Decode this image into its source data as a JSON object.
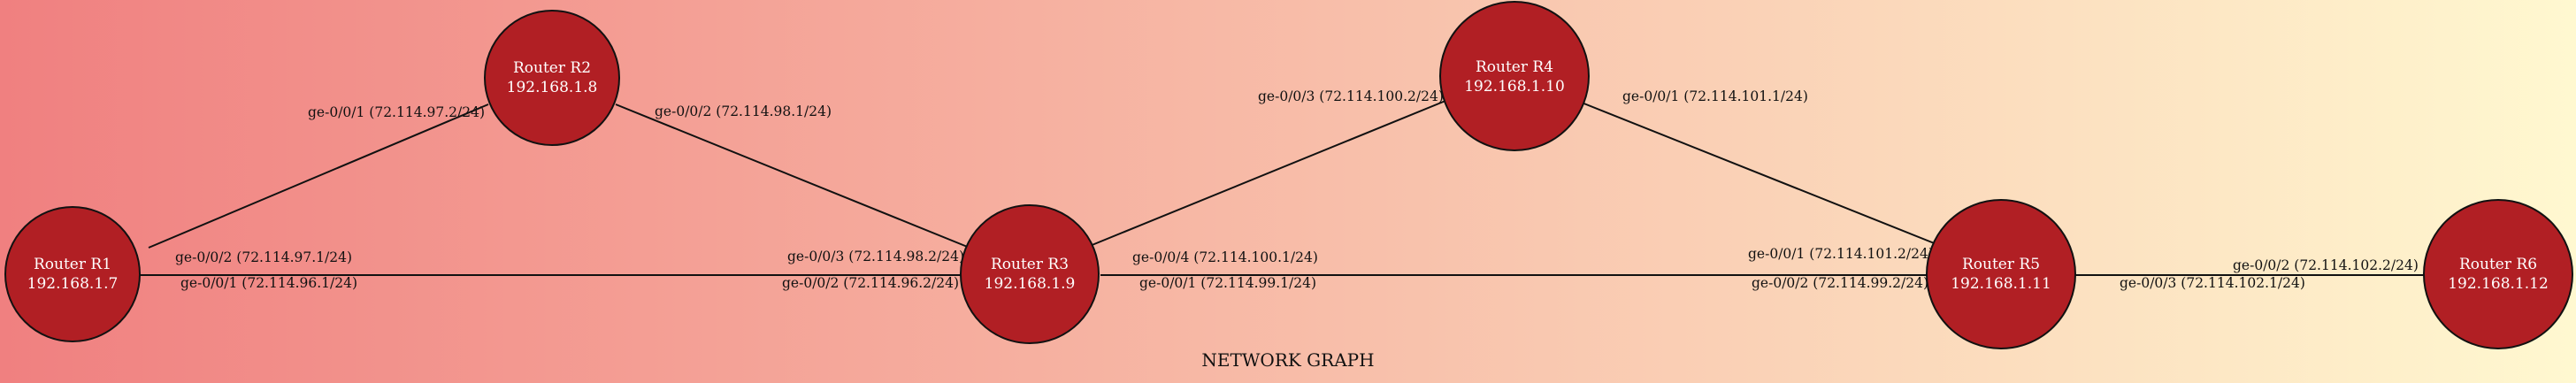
{
  "colors": {
    "bg_left": "#f08080",
    "bg_right": "#fff8d0",
    "node": "#b11f24",
    "line": "#111111"
  },
  "title": "NETWORK GRAPH",
  "nodes": [
    {
      "id": "r1",
      "name": "Router R1",
      "ip": "192.168.1.7"
    },
    {
      "id": "r2",
      "name": "Router R2",
      "ip": "192.168.1.8"
    },
    {
      "id": "r3",
      "name": "Router R3",
      "ip": "192.168.1.9"
    },
    {
      "id": "r4",
      "name": "Router R4",
      "ip": "192.168.1.10"
    },
    {
      "id": "r5",
      "name": "Router R5",
      "ip": "192.168.1.11"
    },
    {
      "id": "r6",
      "name": "Router R6",
      "ip": "192.168.1.12"
    }
  ],
  "edges": [
    {
      "id": "r1-r2",
      "from": "r1",
      "to": "r2",
      "from_label": "ge-0/0/2 (72.114.97.1/24)",
      "to_label": "ge-0/0/1 (72.114.97.2/24)"
    },
    {
      "id": "r2-r3",
      "from": "r2",
      "to": "r3",
      "from_label": "ge-0/0/2 (72.114.98.1/24)",
      "to_label": "ge-0/0/3 (72.114.98.2/24)"
    },
    {
      "id": "r1-r3",
      "from": "r1",
      "to": "r3",
      "from_label": "ge-0/0/1 (72.114.96.1/24)",
      "to_label": "ge-0/0/2 (72.114.96.2/24)"
    },
    {
      "id": "r3-r4",
      "from": "r3",
      "to": "r4",
      "from_label": "ge-0/0/4 (72.114.100.1/24)",
      "to_label": "ge-0/0/3 (72.114.100.2/24)"
    },
    {
      "id": "r4-r5",
      "from": "r4",
      "to": "r5",
      "from_label": "ge-0/0/1 (72.114.101.1/24)",
      "to_label": "ge-0/0/1 (72.114.101.2/24)"
    },
    {
      "id": "r3-r5",
      "from": "r3",
      "to": "r5",
      "from_label": "ge-0/0/1 (72.114.99.1/24)",
      "to_label": "ge-0/0/2 (72.114.99.2/24)"
    },
    {
      "id": "r5-r6",
      "from": "r5",
      "to": "r6",
      "from_label": "ge-0/0/3 (72.114.102.1/24)",
      "to_label": "ge-0/0/2 (72.114.102.2/24)"
    }
  ]
}
